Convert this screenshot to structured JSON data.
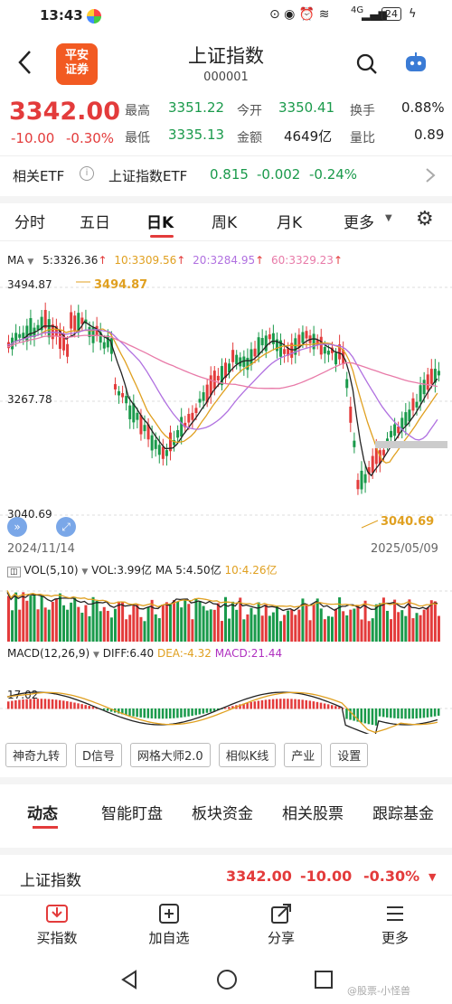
{
  "status": {
    "time": "13:43",
    "signal": "4G",
    "battery": "24"
  },
  "header": {
    "logo_line1": "平安",
    "logo_line2": "证券",
    "title": "上证指数",
    "code": "000001"
  },
  "quote": {
    "price": "3342.00",
    "change": "-10.00",
    "change_pct": "-0.30%",
    "high_label": "最高",
    "high": "3351.22",
    "open_label": "今开",
    "open": "3350.41",
    "turnover_label": "换手",
    "turnover": "0.88%",
    "low_label": "最低",
    "low": "3335.13",
    "amount_label": "金额",
    "amount": "4649亿",
    "volratio_label": "量比",
    "volratio": "0.89"
  },
  "etf": {
    "label": "相关ETF",
    "name": "上证指数ETF",
    "price": "0.815",
    "change": "-0.002",
    "pct": "-0.24%"
  },
  "tabs": [
    "分时",
    "五日",
    "日K",
    "周K",
    "月K",
    "更多"
  ],
  "active_tab": "日K",
  "ma": {
    "label": "MA",
    "ma5": "5:3326.36",
    "ma10": "10:3309.56",
    "ma20": "20:3284.95",
    "ma60": "60:3329.23"
  },
  "chart": {
    "y_top": "3494.87",
    "y_mid": "3267.78",
    "y_low": "3040.69",
    "hi_label": "3494.87",
    "lo_label": "3040.69",
    "date_start": "2024/11/14",
    "date_end": "2025/05/09"
  },
  "vol": {
    "label": "VOL(5,10)",
    "vol": "VOL:3.99亿",
    "ma5": "MA 5:4.50亿",
    "ma10": "10:4.26亿"
  },
  "macd": {
    "label": "MACD(12,26,9)",
    "diff": "DIFF:6.40",
    "dea": "DEA:-4.32",
    "macd": "MACD:21.44",
    "level": "17.02"
  },
  "chips": [
    "神奇九转",
    "D信号",
    "网格大师2.0",
    "相似K线",
    "产业",
    "设置"
  ],
  "bottom_tabs": [
    "动态",
    "智能盯盘",
    "板块资金",
    "相关股票",
    "跟踪基金"
  ],
  "index_row": {
    "name": "上证指数",
    "price": "3342.00",
    "change": "-10.00",
    "pct": "-0.30%"
  },
  "actions": [
    "买指数",
    "加自选",
    "分享",
    "更多"
  ],
  "watermark": "@股票-小怪兽",
  "colors": {
    "up": "#e33b3b",
    "down": "#1a9a4b",
    "ma5": "#222222",
    "ma10": "#e0a020",
    "ma20": "#b070e0",
    "ma60": "#e87aa8"
  }
}
